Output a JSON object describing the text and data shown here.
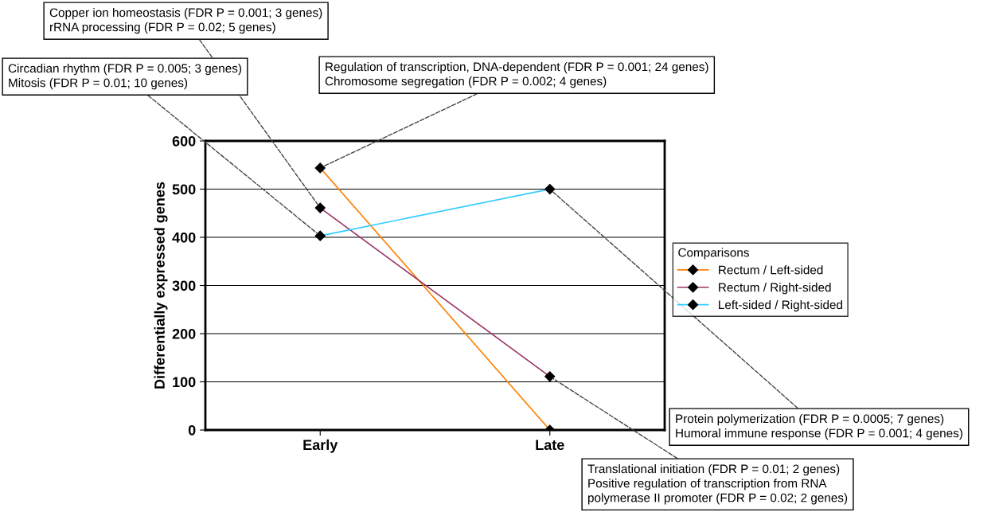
{
  "chart_data": {
    "type": "line",
    "ylabel": "Differentially expressed genes",
    "legend_title": "Comparisons",
    "categories": [
      "Early",
      "Late"
    ],
    "series": [
      {
        "name": "Rectum / Left-sided",
        "color": "#ff8000",
        "values": [
          544,
          0
        ]
      },
      {
        "name": "Rectum / Right-sided",
        "color": "#993366",
        "values": [
          461,
          111
        ]
      },
      {
        "name": "Left-sided / Right-sided",
        "color": "#33ccff",
        "values": [
          403,
          500
        ]
      }
    ],
    "ylim": [
      0,
      600
    ],
    "yticks": [
      0,
      100,
      200,
      300,
      400,
      500,
      600
    ],
    "grid": "y",
    "legend": "right",
    "marker": "diamond",
    "line_style": "solid",
    "annotations": [
      {
        "text": "Copper ion homeostasis (FDR P = 0.001; 3 genes)\nrRNA processing (FDR P = 0.02; 5 genes)",
        "x": "Early",
        "y": 461
      },
      {
        "text": "Circadian rhythm (FDR P = 0.005; 3 genes)\nMitosis (FDR P = 0.01; 10 genes)",
        "x": "Early",
        "y": 403
      },
      {
        "text": "Regulation of transcription, DNA-dependent (FDR P = 0.001; 24 genes)\nChromosome segregation (FDR P = 0.002; 4 genes)",
        "x": "Early",
        "y": 544
      },
      {
        "text": "Protein polymerization (FDR P = 0.0005; 7 genes)\nHumoral immune response (FDR P = 0.001; 4 genes)",
        "x": "Late",
        "y": 500
      },
      {
        "text": "Translational initiation (FDR P = 0.01; 2 genes)\nPositive regulation of transcription from RNA\npolymerase II promoter (FDR P = 0.02; 2 genes)",
        "x": "Late",
        "y": 111
      }
    ]
  }
}
